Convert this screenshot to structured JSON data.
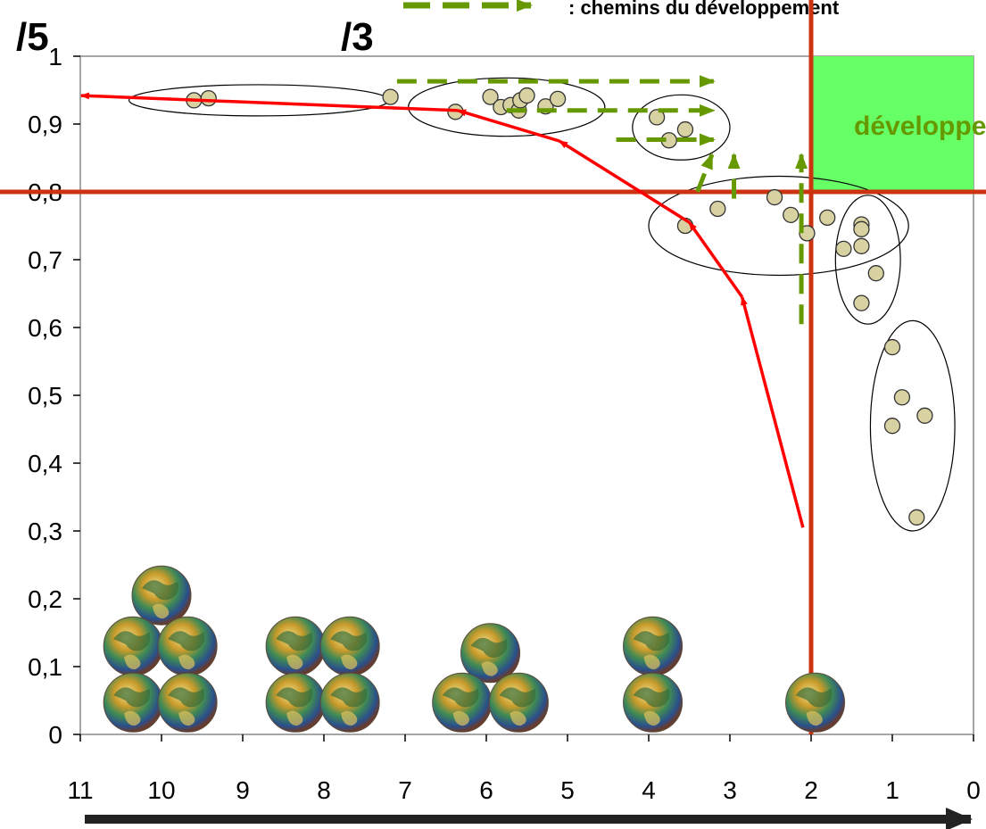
{
  "chart_data": {
    "type": "scatter",
    "title": "",
    "xlabel": "",
    "ylabel": "",
    "xlim": [
      11,
      0
    ],
    "ylim": [
      0,
      1
    ],
    "x_reversed": true,
    "x_ticks": [
      "11",
      "10",
      "9",
      "8",
      "7",
      "6",
      "5",
      "4",
      "3",
      "2",
      "1",
      "0"
    ],
    "y_ticks": [
      "0",
      "0,1",
      "0,2",
      "0,3",
      "0,4",
      "0,5",
      "0,6",
      "0,7",
      "0,8",
      "0,9",
      "1"
    ],
    "header_labels": [
      "/5",
      "/3"
    ],
    "legend_text": ": chemins du développement",
    "zone_label": "développement",
    "thresholds": {
      "x": 2,
      "y": 0.8
    },
    "colors": {
      "points": "#d8d2a2",
      "threshold_lines": "#cc3311",
      "zone": "#66ff66",
      "path_arrows": "#ff0000",
      "dev_paths": "#669900",
      "axis_arrow": "#222222"
    },
    "points": [
      {
        "x": 9.6,
        "y": 0.935
      },
      {
        "x": 9.42,
        "y": 0.938
      },
      {
        "x": 7.18,
        "y": 0.94
      },
      {
        "x": 6.38,
        "y": 0.918
      },
      {
        "x": 5.95,
        "y": 0.94
      },
      {
        "x": 5.82,
        "y": 0.925
      },
      {
        "x": 5.7,
        "y": 0.928
      },
      {
        "x": 5.6,
        "y": 0.92
      },
      {
        "x": 5.58,
        "y": 0.935
      },
      {
        "x": 5.5,
        "y": 0.942
      },
      {
        "x": 5.27,
        "y": 0.926
      },
      {
        "x": 5.12,
        "y": 0.937
      },
      {
        "x": 3.9,
        "y": 0.91
      },
      {
        "x": 3.75,
        "y": 0.876
      },
      {
        "x": 3.55,
        "y": 0.892
      },
      {
        "x": 3.55,
        "y": 0.75
      },
      {
        "x": 3.15,
        "y": 0.775
      },
      {
        "x": 2.45,
        "y": 0.792
      },
      {
        "x": 2.25,
        "y": 0.766
      },
      {
        "x": 2.05,
        "y": 0.739
      },
      {
        "x": 1.8,
        "y": 0.762
      },
      {
        "x": 1.6,
        "y": 0.716
      },
      {
        "x": 1.38,
        "y": 0.752
      },
      {
        "x": 1.38,
        "y": 0.745
      },
      {
        "x": 1.38,
        "y": 0.72
      },
      {
        "x": 1.2,
        "y": 0.68
      },
      {
        "x": 1.38,
        "y": 0.636
      },
      {
        "x": 1.0,
        "y": 0.571
      },
      {
        "x": 0.88,
        "y": 0.497
      },
      {
        "x": 1.0,
        "y": 0.455
      },
      {
        "x": 0.6,
        "y": 0.47
      },
      {
        "x": 0.7,
        "y": 0.32
      }
    ],
    "clusters": [
      {
        "cx": 8.8,
        "cy": 0.935,
        "rx": 1.6,
        "ry": 0.023
      },
      {
        "cx": 5.75,
        "cy": 0.925,
        "rx": 1.21,
        "ry": 0.043
      },
      {
        "cx": 3.6,
        "cy": 0.895,
        "rx": 0.6,
        "ry": 0.048
      },
      {
        "cx": 2.4,
        "cy": 0.75,
        "rx": 1.6,
        "ry": 0.073
      },
      {
        "cx": 1.3,
        "cy": 0.7,
        "rx": 0.4,
        "ry": 0.095
      },
      {
        "cx": 0.75,
        "cy": 0.455,
        "rx": 0.52,
        "ry": 0.155
      }
    ],
    "globes": [
      {
        "x": 10.0,
        "y": 0.205
      },
      {
        "x": 10.35,
        "y": 0.13
      },
      {
        "x": 9.68,
        "y": 0.13
      },
      {
        "x": 10.35,
        "y": 0.047
      },
      {
        "x": 9.68,
        "y": 0.047
      },
      {
        "x": 8.35,
        "y": 0.13
      },
      {
        "x": 7.68,
        "y": 0.13
      },
      {
        "x": 8.35,
        "y": 0.047
      },
      {
        "x": 7.68,
        "y": 0.047
      },
      {
        "x": 5.95,
        "y": 0.12
      },
      {
        "x": 6.3,
        "y": 0.047
      },
      {
        "x": 5.6,
        "y": 0.047
      },
      {
        "x": 3.95,
        "y": 0.13
      },
      {
        "x": 3.95,
        "y": 0.047
      },
      {
        "x": 1.95,
        "y": 0.047
      }
    ],
    "development_paths": [
      {
        "from": [
          2.1,
          0.305
        ],
        "to": [
          2.85,
          0.645
        ]
      },
      {
        "from": [
          2.85,
          0.645
        ],
        "to": [
          3.5,
          0.755
        ]
      },
      {
        "from": [
          3.5,
          0.755
        ],
        "to": [
          5.1,
          0.875
        ]
      },
      {
        "from": [
          5.1,
          0.875
        ],
        "to": [
          6.35,
          0.92
        ]
      },
      {
        "from": [
          6.35,
          0.92
        ],
        "to": [
          10.99,
          0.942
        ]
      }
    ],
    "dev_routes": [
      {
        "from": [
          7.1,
          0.963
        ],
        "to": [
          3.2,
          0.963
        ],
        "direction": "right"
      },
      {
        "from": [
          5.75,
          0.92
        ],
        "to": [
          3.2,
          0.92
        ],
        "direction": "right"
      },
      {
        "from": [
          4.4,
          0.877
        ],
        "to": [
          3.2,
          0.877
        ],
        "direction": "right"
      },
      {
        "from": [
          3.4,
          0.8
        ],
        "to": [
          3.22,
          0.855
        ],
        "direction": "up-right"
      },
      {
        "from": [
          2.95,
          0.79
        ],
        "to": [
          2.95,
          0.855
        ],
        "direction": "up"
      },
      {
        "from": [
          2.12,
          0.605
        ],
        "to": [
          2.12,
          0.855
        ],
        "direction": "up"
      }
    ]
  }
}
